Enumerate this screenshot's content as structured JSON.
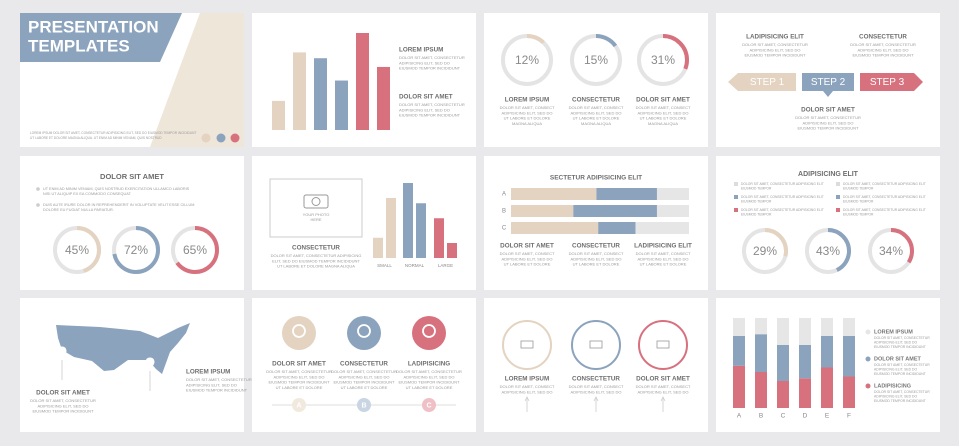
{
  "slides": [
    {
      "title": [
        "PRESENTATION",
        "TEMPLATES"
      ],
      "footer": [
        "LOREM IPSUM DOLOR SIT AMET, CONSECTETUR ADIPISICING ELIT, SED DO EIUSMOD TEMPOR INCIDIDUNT",
        "UT LABORE ET DOLORE MAGNA ALIQUA. UT ENIM AD MINIM VENIAM, QUIS NOSTRUD"
      ]
    },
    {
      "bars": {
        "values": [
          30,
          80,
          74,
          51,
          100,
          65
        ],
        "colors": [
          "#e3d3c0",
          "#e3d3c0",
          "#8ba3bd",
          "#8ba3bd",
          "#d8717e",
          "#d8717e"
        ],
        "ylim": [
          0,
          100
        ]
      },
      "blocks": [
        {
          "heading": "LOREM IPSUM",
          "lines": [
            "DOLOR SIT AMET, CONSECTETUR",
            "ADIPISICING ELIT, SED DO",
            "EIUSMOD TEMPOR INCIDIDUNT"
          ]
        },
        {
          "heading": "DOLOR SIT AMET",
          "lines": [
            "DOLOR SIT AMET, CONSECTETUR",
            "ADIPISICING ELIT, SED DO",
            "EIUSMOD TEMPOR INCIDIDUNT"
          ]
        }
      ]
    },
    {
      "donuts": [
        {
          "value": 12,
          "label": "12%",
          "color": "#e3d3c0"
        },
        {
          "value": 15,
          "label": "15%",
          "color": "#8ba3bd"
        },
        {
          "value": 31,
          "label": "31%",
          "color": "#d8717e"
        }
      ],
      "blocks": [
        {
          "heading": "LOREM IPSUM",
          "lines": [
            "DOLOR SIT AMET, CONSECT",
            "ADIPISICING ELIT, SED DO",
            "UT LABORE ET DOLORE",
            "MAGNA ALIQUA"
          ]
        },
        {
          "heading": "CONSECTETUR",
          "lines": [
            "DOLOR SIT AMET, CONSECT",
            "ADIPISICING ELIT, SED DO",
            "UT LABORE ET DOLORE",
            "MAGNA ALIQUA"
          ]
        },
        {
          "heading": "DOLOR SIT AMET",
          "lines": [
            "DOLOR SIT AMET, CONSECT",
            "ADIPISICING ELIT, SED DO",
            "UT LABORE ET DOLORE",
            "MAGNA ALIQUA"
          ]
        }
      ]
    },
    {
      "blocks": [
        {
          "heading": "LADIPISICING ELIT",
          "lines": [
            "DOLOR SIT AMET, CONSECTETUR",
            "ADIPISICING ELIT, SED DO",
            "EIUSMOD TEMPOR INCIDIDUNT"
          ]
        },
        {
          "heading": "CONSECTETUR",
          "lines": [
            "DOLOR SIT AMET, CONSECTETUR",
            "ADIPISICING ELIT, SED DO",
            "EIUSMOD TEMPOR INCIDIDUNT"
          ]
        },
        {
          "heading": "DOLOR SIT AMET",
          "lines": [
            "DOLOR SIT AMET, CONSECTETUR",
            "ADIPISICING ELIT, SED DO",
            "EIUSMOD TEMPOR INCIDIDUNT"
          ]
        }
      ],
      "steps": [
        {
          "label": "STEP 1",
          "color": "#e3d3c0"
        },
        {
          "label": "STEP 2",
          "color": "#8ba3bd"
        },
        {
          "label": "STEP 3",
          "color": "#d8717e"
        }
      ]
    },
    {
      "title": "DOLOR SIT AMET",
      "bullets": [
        [
          "UT ENIM AD MINIM VENIAM, QUIS NOSTRUD EXERCITATION ULLAMCO LABORIS",
          "NISI UT ALIQUIP EX EA COMMODO CONSEQUAT."
        ],
        [
          "DUIS AUTE IRURE DOLOR IN REPREHENDERIT IN VOLUPTATE VELIT ESSE CILLUM",
          "DOLORE EU FUGIAT NULLA PARIATUR."
        ]
      ],
      "donuts": [
        {
          "value": 45,
          "label": "45%",
          "color": "#e3d3c0"
        },
        {
          "value": 72,
          "label": "72%",
          "color": "#8ba3bd"
        },
        {
          "value": 65,
          "label": "65%",
          "color": "#d8717e"
        }
      ]
    },
    {
      "photo": [
        "YOUR PHOTO",
        "HERE"
      ],
      "blocks": [
        {
          "heading": "CONSECTETUR",
          "lines": [
            "DOLOR SIT AMET, CONSECTETUR ADIPISICING",
            "ELIT, SED DO EIUSMOD TEMPOR INCIDIDUNT",
            "UT LABORE ET DOLORE MAGNA ALIQUA"
          ]
        }
      ],
      "bars": {
        "values": [
          27,
          80,
          100,
          73,
          53,
          20
        ],
        "colors": [
          "#e3d3c0",
          "#e3d3c0",
          "#8ba3bd",
          "#8ba3bd",
          "#d8717e",
          "#d8717e"
        ],
        "ylim": [
          0,
          100
        ]
      },
      "categories": [
        "SMALL",
        "NORMAL",
        "LARGE"
      ]
    },
    {
      "title": "SECTETUR ADIPISICING ELIT",
      "chart": {
        "categories": [
          "A",
          "B",
          "C"
        ],
        "series": [
          {
            "color": "#e3d3c0",
            "values": [
              48,
              35,
              49
            ]
          },
          {
            "color": "#8ba3bd",
            "values": [
              34,
              47,
              21
            ]
          },
          {
            "color": "#e6e6e6",
            "values": [
              18,
              18,
              30
            ]
          }
        ],
        "xlim": [
          0,
          100
        ]
      },
      "blocks": [
        {
          "heading": "DOLOR SIT AMET",
          "lines": [
            "DOLOR SIT AMET, CONSECT",
            "ADIPISICING ELIT, SED DO",
            "UT LABORE ET DOLORE"
          ]
        },
        {
          "heading": "CONSECTETUR",
          "lines": [
            "DOLOR SIT AMET, CONSECT",
            "ADIPISICING ELIT, SED DO",
            "UT LABORE ET DOLORE"
          ]
        },
        {
          "heading": "LADIPISICING ELIT",
          "lines": [
            "DOLOR SIT AMET, CONSECT",
            "ADIPISICING ELIT, SED DO",
            "UT LABORE ET DOLORE"
          ]
        }
      ]
    },
    {
      "title": "ADIPISICING ELIT",
      "legend": [
        {
          "color": "#dcdcdc",
          "lines": [
            "DOLOR SIT AMET, CONSECTETUR ADIPISICING ELIT",
            "EIUSMOD TEMPOR"
          ]
        },
        {
          "color": "#8ba3bd",
          "lines": [
            "DOLOR SIT AMET, CONSECTETUR ADIPISICING ELIT",
            "EIUSMOD TEMPOR"
          ]
        },
        {
          "color": "#d8717e",
          "lines": [
            "DOLOR SIT AMET, CONSECTETUR ADIPISICING ELIT",
            "EIUSMOD TEMPOR"
          ]
        },
        {
          "color": "#dcdcdc",
          "lines": [
            "DOLOR SIT AMET, CONSECTETUR ADIPISICING ELIT",
            "EIUSMOD TEMPOR"
          ]
        },
        {
          "color": "#8ba3bd",
          "lines": [
            "DOLOR SIT AMET, CONSECTETUR ADIPISICING ELIT",
            "EIUSMOD TEMPOR"
          ]
        },
        {
          "color": "#d8717e",
          "lines": [
            "DOLOR SIT AMET, CONSECTETUR ADIPISICING ELIT",
            "EIUSMOD TEMPOR"
          ]
        }
      ],
      "donuts": [
        {
          "value": 29,
          "label": "29%",
          "color": "#e3d3c0"
        },
        {
          "value": 43,
          "label": "43%",
          "color": "#8ba3bd"
        },
        {
          "value": 34,
          "label": "34%",
          "color": "#d8717e"
        }
      ]
    },
    {
      "blocks": [
        {
          "heading": "DOLOR SIT AMET",
          "lines": [
            "DOLOR SIT AMET, CONSECTETUR",
            "ADIPISICING ELIT, SED DO",
            "EIUSMOD TEMPOR INCIDIDUNT"
          ]
        },
        {
          "heading": "LOREM IPSUM",
          "lines": [
            "DOLOR SIT AMET, CONSECTETUR",
            "ADIPISICING ELIT, SED DO",
            "EIUSMOD TEMPOR INCIDIDUNT"
          ]
        }
      ]
    },
    {
      "blocks": [
        {
          "heading": "DOLOR SIT AMET",
          "lines": [
            "DOLOR SIT AMET, CONSECTETUR",
            "ADIPISICING ELIT, SED DO",
            "EIUSMOD TEMPOR INCIDIDUNT",
            "UT LABORE ET DOLORE"
          ]
        },
        {
          "heading": "CONSECTETUR",
          "lines": [
            "DOLOR SIT AMET, CONSECTETUR",
            "ADIPISICING ELIT, SED DO",
            "EIUSMOD TEMPOR INCIDIDUNT",
            "UT LABORE ET DOLORE"
          ]
        },
        {
          "heading": "LADIPISICING",
          "lines": [
            "DOLOR SIT AMET, CONSECTETUR",
            "ADIPISICING ELIT, SED DO",
            "EIUSMOD TEMPOR INCIDIDUNT",
            "UT LABORE ET DOLORE"
          ]
        }
      ],
      "letters": [
        "A",
        "B",
        "C"
      ]
    },
    {
      "blocks": [
        {
          "heading": "LOREM IPSUM",
          "lines": [
            "DOLOR SIT AMET, CONSECT",
            "ADIPISICING ELIT, SED DO"
          ]
        },
        {
          "heading": "CONSECTETUR",
          "lines": [
            "DOLOR SIT AMET, CONSECT",
            "ADIPISICING ELIT, SED DO"
          ]
        },
        {
          "heading": "DOLOR SIT AMET",
          "lines": [
            "DOLOR SIT AMET, CONSECT",
            "ADIPISICING ELIT, SED DO"
          ]
        }
      ]
    },
    {
      "chart": {
        "categories": [
          "A",
          "B",
          "C",
          "D",
          "E",
          "F"
        ],
        "ylim": [
          0,
          100
        ],
        "series": [
          {
            "name": "LOREM IPSUM",
            "color": "#e6e6e6",
            "values": [
              20,
              18,
              30,
              30,
              20,
              20
            ],
            "lines": [
              "DOLOR SIT AMET, CONSECTETUR",
              "ADIPISICING ELIT, SED DO",
              "EIUSMOD TEMPOR INCIDIDUNT"
            ]
          },
          {
            "name": "DOLOR SIT AMET",
            "color": "#8ba3bd",
            "values": [
              33,
              42,
              40,
              37,
              35,
              45
            ],
            "lines": [
              "DOLOR SIT AMET, CONSECTETUR",
              "ADIPISICING ELIT, SED DO",
              "EIUSMOD TEMPOR INCIDIDUNT"
            ]
          },
          {
            "name": "LADIPISICING",
            "color": "#d8717e",
            "values": [
              47,
              40,
              30,
              33,
              45,
              35
            ],
            "lines": [
              "DOLOR SIT AMET, CONSECTETUR",
              "ADIPISICING ELIT, SED DO",
              "EIUSMOD TEMPOR INCIDIDUNT"
            ]
          }
        ]
      }
    }
  ]
}
